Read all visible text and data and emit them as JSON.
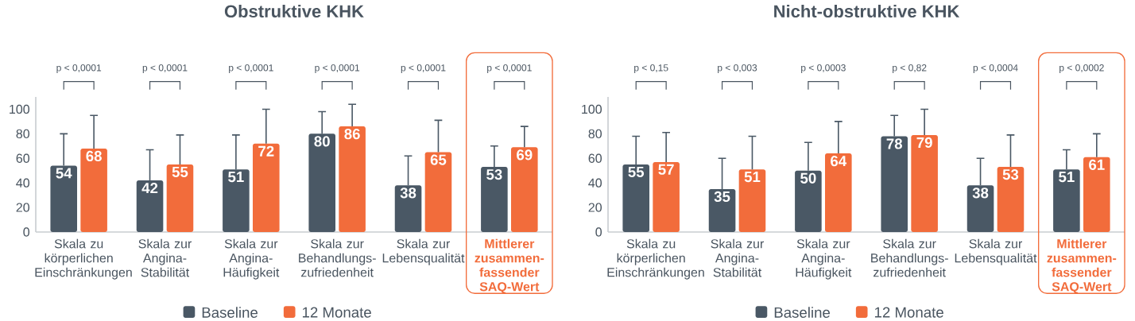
{
  "chart_data": [
    {
      "type": "bar",
      "title": "Obstruktive KHK",
      "categories": [
        "Skala zu körperlichen Einschränkungen",
        "Skala zur Angina-Stabilität",
        "Skala zur Angina-Häufigkeit",
        "Skala zur Behandlungs-zufriedenheit",
        "Skala zur Lebensqualität",
        "Mittlerer zusammen-fassender SAQ-Wert"
      ],
      "series": [
        {
          "name": "Baseline",
          "color": "#4a5865",
          "values": [
            54,
            42,
            51,
            80,
            38,
            53
          ],
          "errors": [
            [
              54,
              80
            ],
            [
              42,
              67
            ],
            [
              51,
              79
            ],
            [
              80,
              98
            ],
            [
              38,
              62
            ],
            [
              53,
              70
            ]
          ]
        },
        {
          "name": "12 Monate",
          "color": "#f26c3b",
          "values": [
            68,
            55,
            72,
            86,
            65,
            69
          ],
          "errors": [
            [
              68,
              95
            ],
            [
              55,
              79
            ],
            [
              72,
              100
            ],
            [
              86,
              104
            ],
            [
              65,
              91
            ],
            [
              69,
              86
            ]
          ]
        }
      ],
      "ylim": [
        0,
        110
      ],
      "yticks": [
        0,
        20,
        40,
        60,
        80,
        100
      ],
      "data_labels": true,
      "legend": "bottom",
      "annotations": [
        "p < 0,0001",
        "p < 0,0001",
        "p < 0,0001",
        "p < 0,0001",
        "p < 0,0001",
        "p < 0,0001"
      ]
    },
    {
      "type": "bar",
      "title": "Nicht-obstruktive KHK",
      "categories": [
        "Skala zu körperlichen Einschränkungen",
        "Skala zur Angina-Stabilität",
        "Skala zur Angina-Häufigkeit",
        "Skala zur Behandlungs-zufriedenheit",
        "Skala zur Lebensqualität",
        "Mittlerer zusammen-fassender SAQ-Wert"
      ],
      "series": [
        {
          "name": "Baseline",
          "color": "#4a5865",
          "values": [
            55,
            35,
            50,
            78,
            38,
            51
          ],
          "errors": [
            [
              55,
              78
            ],
            [
              35,
              60
            ],
            [
              50,
              73
            ],
            [
              78,
              95
            ],
            [
              38,
              60
            ],
            [
              51,
              67
            ]
          ]
        },
        {
          "name": "12 Monate",
          "color": "#f26c3b",
          "values": [
            57,
            51,
            64,
            79,
            53,
            61
          ],
          "errors": [
            [
              57,
              81
            ],
            [
              51,
              78
            ],
            [
              64,
              90
            ],
            [
              79,
              100
            ],
            [
              53,
              79
            ],
            [
              61,
              80
            ]
          ]
        }
      ],
      "ylim": [
        0,
        110
      ],
      "yticks": [
        0,
        20,
        40,
        60,
        80,
        100
      ],
      "data_labels": true,
      "legend": "bottom",
      "annotations": [
        "p < 0,15",
        "p < 0,003",
        "p < 0,0003",
        "p < 0,82",
        "p < 0,0004",
        "p < 0,0002"
      ]
    }
  ]
}
